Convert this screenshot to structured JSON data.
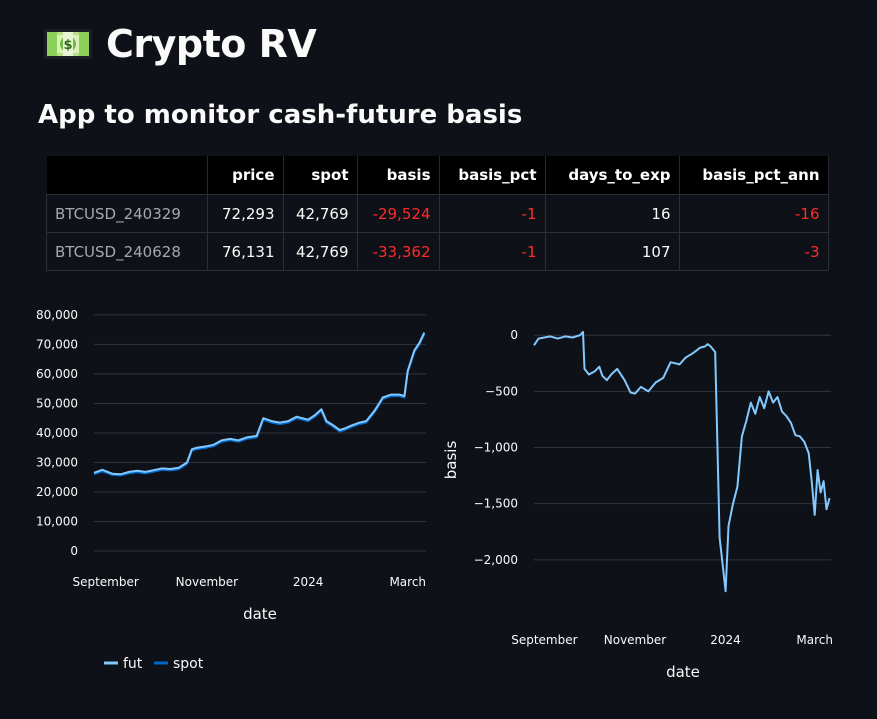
{
  "header": {
    "icon": "dollar-banknote-icon",
    "title": "Crypto RV",
    "subtitle": "App to monitor cash-future basis"
  },
  "table": {
    "columns": [
      "",
      "price",
      "spot",
      "basis",
      "basis_pct",
      "days_to_exp",
      "basis_pct_ann"
    ],
    "rows": [
      {
        "index": "BTCUSD_240329",
        "price": "72,293",
        "spot": "42,769",
        "basis": "-29,524",
        "basis_pct": "-1",
        "days_to_exp": "16",
        "basis_pct_ann": "-16"
      },
      {
        "index": "BTCUSD_240628",
        "price": "76,131",
        "spot": "42,769",
        "basis": "-33,362",
        "basis_pct": "-1",
        "days_to_exp": "107",
        "basis_pct_ann": "-3"
      }
    ],
    "negative_color": "#ff2b2b"
  },
  "chart_data": [
    {
      "type": "line",
      "title": "",
      "xlabel": "date",
      "ylabel": "",
      "ylim": [
        0,
        82000
      ],
      "yticks": [
        0,
        10000,
        20000,
        30000,
        40000,
        50000,
        60000,
        70000,
        80000
      ],
      "ytick_labels": [
        "0",
        "10,000",
        "20,000",
        "30,000",
        "40,000",
        "50,000",
        "60,000",
        "70,000",
        "80,000"
      ],
      "xlim": [
        "2023-08-25",
        "2024-03-12"
      ],
      "xticks": [
        "2023-09-01",
        "2023-11-01",
        "2024-01-01",
        "2024-03-01"
      ],
      "xtick_labels": [
        "September",
        "November",
        "2024",
        "March"
      ],
      "grid": true,
      "legend": "bottom-left",
      "series": [
        {
          "name": "fut",
          "color": "#83c9ff",
          "x": [
            "2023-08-25",
            "2023-08-30",
            "2023-09-05",
            "2023-09-10",
            "2023-09-15",
            "2023-09-20",
            "2023-09-25",
            "2023-10-01",
            "2023-10-05",
            "2023-10-10",
            "2023-10-15",
            "2023-10-20",
            "2023-10-23",
            "2023-10-26",
            "2023-11-01",
            "2023-11-05",
            "2023-11-10",
            "2023-11-15",
            "2023-11-20",
            "2023-11-25",
            "2023-12-01",
            "2023-12-05",
            "2023-12-10",
            "2023-12-15",
            "2023-12-20",
            "2023-12-25",
            "2024-01-01",
            "2024-01-05",
            "2024-01-09",
            "2024-01-12",
            "2024-01-15",
            "2024-01-20",
            "2024-01-23",
            "2024-01-27",
            "2024-02-01",
            "2024-02-05",
            "2024-02-10",
            "2024-02-15",
            "2024-02-20",
            "2024-02-25",
            "2024-02-28",
            "2024-03-01",
            "2024-03-05",
            "2024-03-08",
            "2024-03-11"
          ],
          "y": [
            26500,
            27500,
            26200,
            26000,
            26800,
            27200,
            26800,
            27500,
            28000,
            27800,
            28200,
            30000,
            34500,
            35000,
            35500,
            36000,
            37500,
            38000,
            37500,
            38500,
            39000,
            45000,
            44000,
            43500,
            44000,
            45500,
            44500,
            46000,
            48000,
            44000,
            43000,
            41000,
            41500,
            42500,
            43500,
            44000,
            47500,
            52000,
            53000,
            53000,
            52500,
            61000,
            68000,
            70500,
            74000
          ]
        },
        {
          "name": "spot",
          "color": "#0068c9",
          "x": [
            "2023-08-25",
            "2023-08-30",
            "2023-09-05",
            "2023-09-10",
            "2023-09-15",
            "2023-09-20",
            "2023-09-25",
            "2023-10-01",
            "2023-10-05",
            "2023-10-10",
            "2023-10-15",
            "2023-10-20",
            "2023-10-23",
            "2023-10-26",
            "2023-11-01",
            "2023-11-05",
            "2023-11-10",
            "2023-11-15",
            "2023-11-20",
            "2023-11-25",
            "2023-12-01",
            "2023-12-05",
            "2023-12-10",
            "2023-12-15",
            "2023-12-20",
            "2023-12-25",
            "2024-01-01",
            "2024-01-05",
            "2024-01-09",
            "2024-01-12",
            "2024-01-15",
            "2024-01-20",
            "2024-01-23",
            "2024-01-27",
            "2024-02-01",
            "2024-02-05",
            "2024-02-10",
            "2024-02-15",
            "2024-02-20",
            "2024-02-25",
            "2024-02-28",
            "2024-03-01",
            "2024-03-05",
            "2024-03-08",
            "2024-03-11"
          ],
          "y": [
            26000,
            27000,
            25800,
            25600,
            26300,
            26700,
            26300,
            27000,
            27500,
            27300,
            27700,
            29500,
            34000,
            34500,
            35000,
            35500,
            37000,
            37500,
            37000,
            38000,
            38500,
            44500,
            43500,
            43000,
            43500,
            45000,
            44000,
            45500,
            47500,
            43500,
            42500,
            40500,
            41000,
            42000,
            43000,
            43500,
            47000,
            51500,
            52500,
            52500,
            52000,
            60500,
            67500,
            70000,
            73500
          ]
        }
      ]
    },
    {
      "type": "line",
      "title": "",
      "xlabel": "date",
      "ylabel": "basis",
      "ylim": [
        -2420,
        100
      ],
      "yticks": [
        0,
        -500,
        -1000,
        -1500,
        -2000
      ],
      "ytick_labels": [
        "0",
        "−500",
        "−1,000",
        "−1,500",
        "−2,000"
      ],
      "xlim": [
        "2023-08-25",
        "2024-03-12"
      ],
      "xticks": [
        "2023-09-01",
        "2023-11-01",
        "2024-01-01",
        "2024-03-01"
      ],
      "xtick_labels": [
        "September",
        "November",
        "2024",
        "March"
      ],
      "grid": true,
      "series": [
        {
          "color": "#83c9ff",
          "x": [
            "2023-08-25",
            "2023-08-28",
            "2023-09-01",
            "2023-09-05",
            "2023-09-10",
            "2023-09-15",
            "2023-09-20",
            "2023-09-25",
            "2023-09-27",
            "2023-09-28",
            "2023-10-01",
            "2023-10-05",
            "2023-10-08",
            "2023-10-10",
            "2023-10-13",
            "2023-10-16",
            "2023-10-20",
            "2023-10-25",
            "2023-10-29",
            "2023-11-01",
            "2023-11-05",
            "2023-11-10",
            "2023-11-15",
            "2023-11-20",
            "2023-11-25",
            "2023-12-01",
            "2023-12-05",
            "2023-12-10",
            "2023-12-15",
            "2023-12-18",
            "2023-12-20",
            "2023-12-22",
            "2023-12-25",
            "2023-12-28",
            "2024-01-01",
            "2024-01-03",
            "2024-01-06",
            "2024-01-09",
            "2024-01-12",
            "2024-01-15",
            "2024-01-18",
            "2024-01-21",
            "2024-01-24",
            "2024-01-27",
            "2024-01-30",
            "2024-02-02",
            "2024-02-05",
            "2024-02-08",
            "2024-02-11",
            "2024-02-14",
            "2024-02-17",
            "2024-02-20",
            "2024-02-23",
            "2024-02-26",
            "2024-02-28",
            "2024-03-01",
            "2024-03-03",
            "2024-03-05",
            "2024-03-07",
            "2024-03-09",
            "2024-03-11"
          ],
          "y": [
            -90,
            -30,
            -20,
            -10,
            -30,
            -10,
            -20,
            0,
            30,
            -300,
            -350,
            -320,
            -280,
            -360,
            -400,
            -350,
            -300,
            -400,
            -510,
            -520,
            -460,
            -500,
            -420,
            -380,
            -240,
            -260,
            -200,
            -160,
            -110,
            -100,
            -80,
            -100,
            -150,
            -1800,
            -2280,
            -1700,
            -1500,
            -1350,
            -900,
            -760,
            -600,
            -700,
            -550,
            -650,
            -500,
            -600,
            -550,
            -680,
            -720,
            -780,
            -890,
            -900,
            -950,
            -1050,
            -1300,
            -1600,
            -1200,
            -1400,
            -1300,
            -1550,
            -1450
          ]
        }
      ]
    }
  ]
}
